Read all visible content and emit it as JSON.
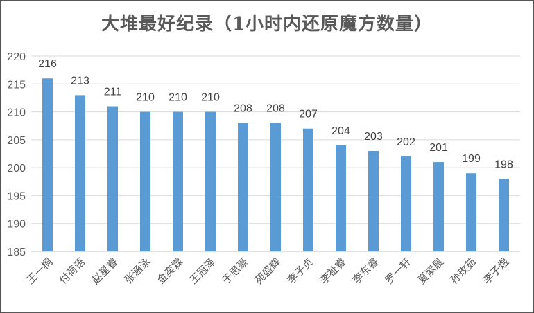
{
  "chart_data": {
    "type": "bar",
    "title": "大堆最好纪录（1小时内还原魔方数量）",
    "xlabel": "",
    "ylabel": "",
    "ylim": [
      185,
      220
    ],
    "yticks": [
      185,
      190,
      195,
      200,
      205,
      210,
      215,
      220
    ],
    "grid": true,
    "bar_color": "#5b9bd5",
    "categories": [
      "王一桐",
      "付荷语",
      "赵星睿",
      "张涵泳",
      "金奕霖",
      "王冠泽",
      "于思豪",
      "苑盛辉",
      "李子贞",
      "李祉睿",
      "李东睿",
      "罗一轩",
      "夏紫晨",
      "孙玫茹",
      "李子煜"
    ],
    "values": [
      216,
      213,
      211,
      210,
      210,
      210,
      208,
      208,
      207,
      204,
      203,
      202,
      201,
      199,
      198
    ]
  }
}
